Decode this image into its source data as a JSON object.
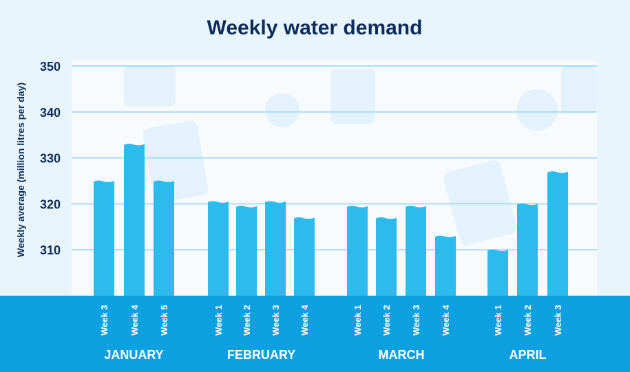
{
  "chart_data": {
    "type": "bar",
    "title": "Weekly water demand",
    "xlabel": "",
    "ylabel": "Weekly average (million litres per day)",
    "ylim": [
      300,
      350
    ],
    "yticks": [
      310,
      320,
      330,
      340,
      350
    ],
    "grid": true,
    "groups": [
      {
        "month": "JANUARY",
        "categories": [
          "Week 3",
          "Week 4",
          "Week 5"
        ],
        "values": [
          325,
          333,
          325
        ]
      },
      {
        "month": "FEBRUARY",
        "categories": [
          "Week 1",
          "Week 2",
          "Week 3",
          "Week 4"
        ],
        "values": [
          320.5,
          319.5,
          320.5,
          317
        ]
      },
      {
        "month": "MARCH",
        "categories": [
          "Week 1",
          "Week 2",
          "Week 3",
          "Week 4"
        ],
        "values": [
          319.5,
          317,
          319.5,
          313
        ]
      },
      {
        "month": "APRIL",
        "categories": [
          "Week 1",
          "Week 2",
          "Week 3"
        ],
        "values": [
          310,
          320,
          327
        ]
      }
    ],
    "colors": {
      "bar": "#2dbbee",
      "band": "#0ca0e0",
      "grid": "#a9dcf7",
      "title": "#0d2c5b",
      "background": "#e9f5fd"
    }
  }
}
